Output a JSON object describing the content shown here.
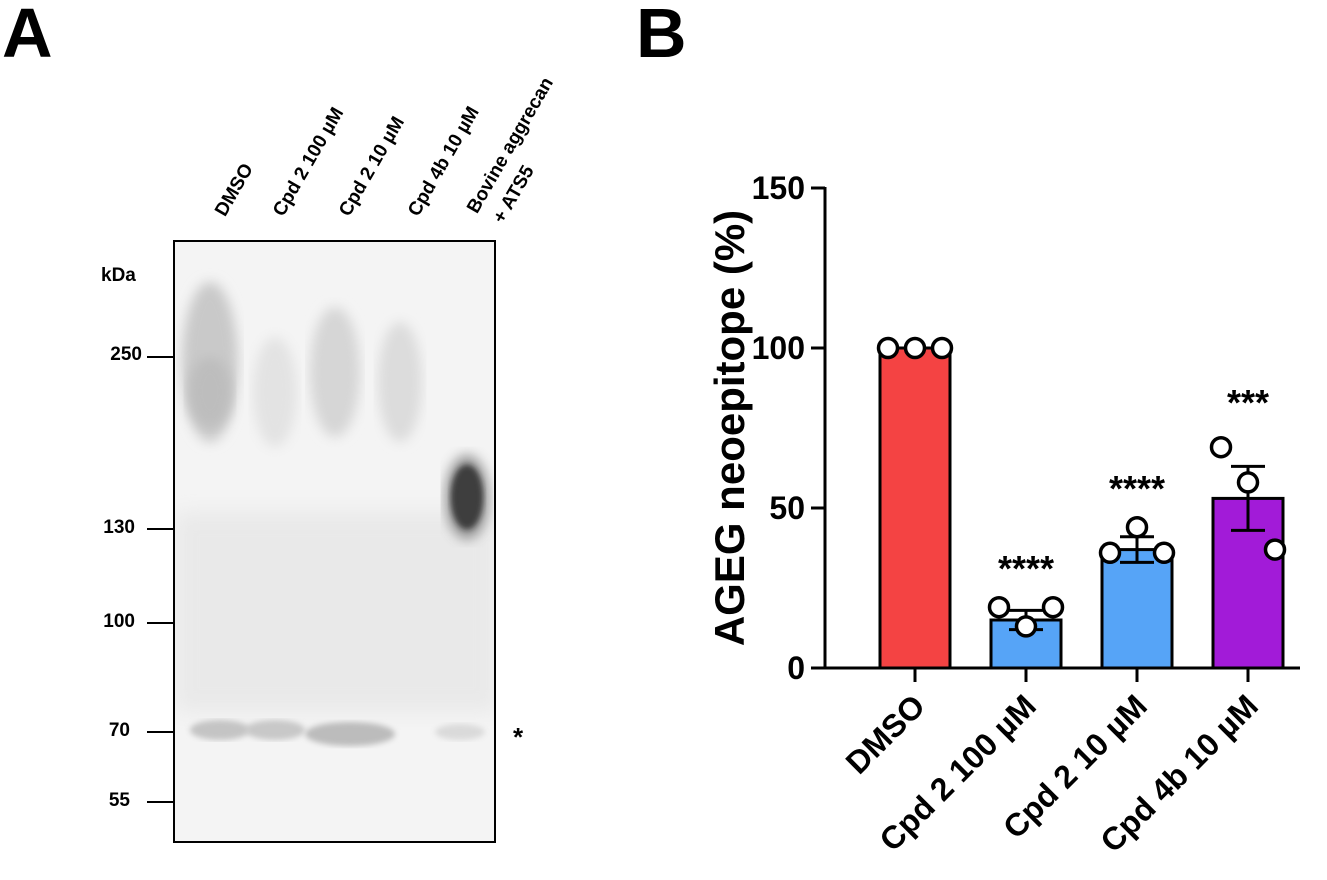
{
  "panelA": {
    "letter": "A",
    "lanes": [
      "DMSO",
      "Cpd 2 100 µM",
      "Cpd 2 10 µM",
      "Cpd 4b 10 µM",
      "Bovine aggrecan",
      "+ ATS5"
    ],
    "kda_label": "kDa",
    "markers": [
      "250",
      "130",
      "100",
      "70",
      "55"
    ],
    "annotation": "*"
  },
  "panelB": {
    "letter": "B"
  },
  "chart_data": {
    "type": "bar",
    "ylabel": "AGEG neoepitope (%)",
    "ylim": [
      0,
      150
    ],
    "yticks": [
      "0",
      "50",
      "100",
      "150"
    ],
    "categories": [
      "DMSO",
      "Cpd 2 100 µM",
      "Cpd 2 10 µM",
      "Cpd 4b 10 µM"
    ],
    "values": [
      100,
      15,
      37,
      53
    ],
    "errors": [
      0,
      3,
      4,
      10
    ],
    "points": [
      [
        100,
        100,
        100
      ],
      [
        19,
        13,
        19
      ],
      [
        36,
        44,
        36
      ],
      [
        69,
        58,
        37
      ]
    ],
    "significance": [
      "",
      "****",
      "****",
      "***"
    ],
    "colors": [
      "#f44343",
      "#56a4f7",
      "#56a4f7",
      "#a21bd8"
    ]
  }
}
